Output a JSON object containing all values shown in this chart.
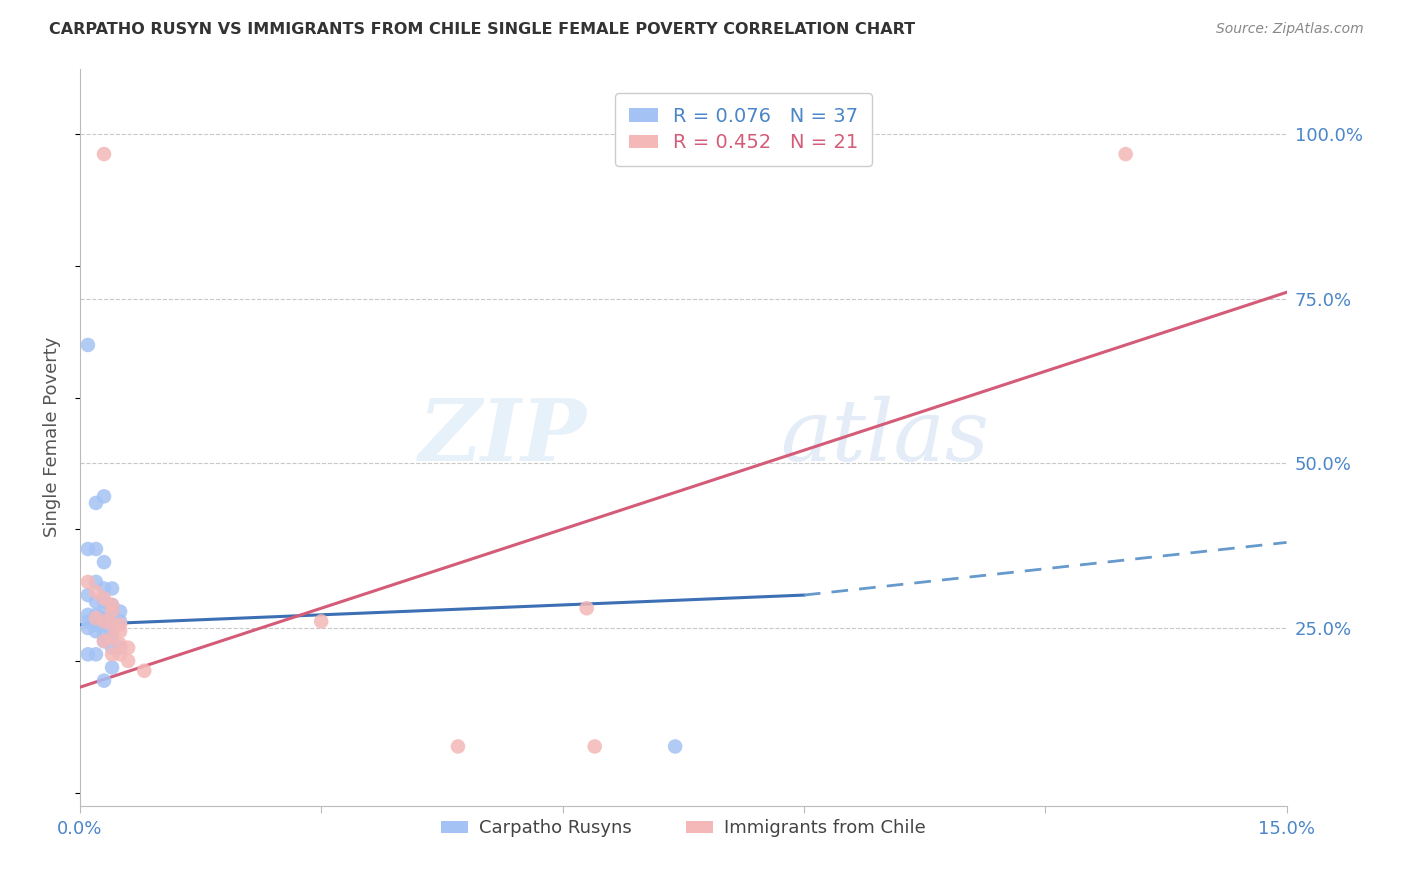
{
  "title": "CARPATHO RUSYN VS IMMIGRANTS FROM CHILE SINGLE FEMALE POVERTY CORRELATION CHART",
  "source": "Source: ZipAtlas.com",
  "ylabel": "Single Female Poverty",
  "xlim": [
    0.0,
    0.15
  ],
  "ylim": [
    -0.02,
    1.1
  ],
  "xticks": [
    0.0,
    0.03,
    0.06,
    0.09,
    0.12,
    0.15
  ],
  "xtick_labels_show": [
    "0.0%",
    "",
    "",
    "",
    "",
    "15.0%"
  ],
  "yticks": [
    0.25,
    0.5,
    0.75,
    1.0
  ],
  "ytick_labels": [
    "25.0%",
    "50.0%",
    "75.0%",
    "100.0%"
  ],
  "blue_color": "#a4c2f4",
  "pink_color": "#f4b8b8",
  "blue_line_color": "#3d6fb5",
  "blue_dash_color": "#6699cc",
  "pink_line_color": "#d45c78",
  "axis_label_color": "#4a86c8",
  "grid_color": "#c8c8c8",
  "title_color": "#333333",
  "watermark_text": "ZIPatlas",
  "blue_scatter": [
    [
      0.001,
      0.68
    ],
    [
      0.002,
      0.44
    ],
    [
      0.003,
      0.45
    ],
    [
      0.001,
      0.37
    ],
    [
      0.002,
      0.37
    ],
    [
      0.003,
      0.35
    ],
    [
      0.002,
      0.32
    ],
    [
      0.003,
      0.31
    ],
    [
      0.004,
      0.31
    ],
    [
      0.001,
      0.3
    ],
    [
      0.002,
      0.29
    ],
    [
      0.003,
      0.29
    ],
    [
      0.004,
      0.285
    ],
    [
      0.003,
      0.275
    ],
    [
      0.004,
      0.275
    ],
    [
      0.005,
      0.275
    ],
    [
      0.001,
      0.27
    ],
    [
      0.002,
      0.27
    ],
    [
      0.003,
      0.265
    ],
    [
      0.004,
      0.265
    ],
    [
      0.005,
      0.26
    ],
    [
      0.001,
      0.26
    ],
    [
      0.002,
      0.255
    ],
    [
      0.003,
      0.255
    ],
    [
      0.004,
      0.255
    ],
    [
      0.001,
      0.25
    ],
    [
      0.002,
      0.245
    ],
    [
      0.003,
      0.24
    ],
    [
      0.004,
      0.24
    ],
    [
      0.003,
      0.23
    ],
    [
      0.004,
      0.22
    ],
    [
      0.005,
      0.22
    ],
    [
      0.001,
      0.21
    ],
    [
      0.002,
      0.21
    ],
    [
      0.004,
      0.19
    ],
    [
      0.003,
      0.17
    ],
    [
      0.074,
      0.07
    ]
  ],
  "pink_scatter": [
    [
      0.003,
      0.97
    ],
    [
      0.13,
      0.97
    ],
    [
      0.001,
      0.32
    ],
    [
      0.002,
      0.305
    ],
    [
      0.003,
      0.295
    ],
    [
      0.004,
      0.285
    ],
    [
      0.004,
      0.275
    ],
    [
      0.002,
      0.265
    ],
    [
      0.003,
      0.26
    ],
    [
      0.004,
      0.255
    ],
    [
      0.005,
      0.255
    ],
    [
      0.005,
      0.245
    ],
    [
      0.004,
      0.235
    ],
    [
      0.003,
      0.23
    ],
    [
      0.005,
      0.225
    ],
    [
      0.006,
      0.22
    ],
    [
      0.004,
      0.21
    ],
    [
      0.005,
      0.21
    ],
    [
      0.006,
      0.2
    ],
    [
      0.008,
      0.185
    ],
    [
      0.03,
      0.26
    ],
    [
      0.063,
      0.28
    ],
    [
      0.047,
      0.07
    ],
    [
      0.064,
      0.07
    ]
  ],
  "blue_trend_x0": 0.0,
  "blue_trend_y0": 0.255,
  "blue_trend_x_break": 0.09,
  "blue_trend_y_break": 0.3,
  "blue_trend_x1": 0.15,
  "blue_trend_y1": 0.38,
  "pink_trend_x0": 0.0,
  "pink_trend_y0": 0.16,
  "pink_trend_x1": 0.15,
  "pink_trend_y1": 0.76
}
